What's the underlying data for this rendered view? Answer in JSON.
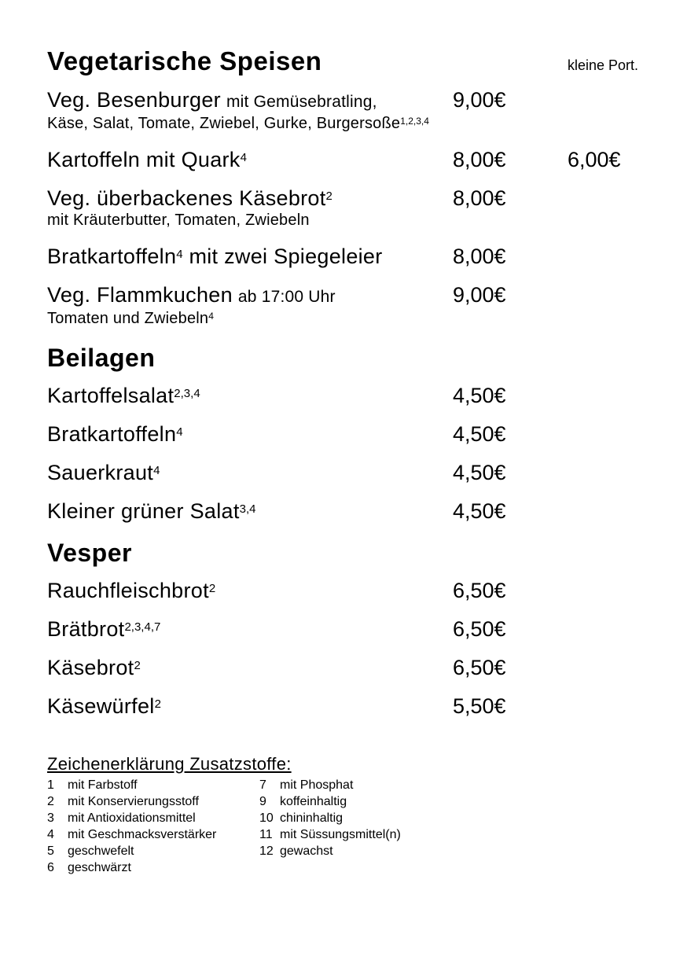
{
  "header": {
    "small_portion_label": "kleine Port."
  },
  "sections": [
    {
      "heading": "Vegetarische Speisen",
      "items": [
        {
          "name": "Veg. Besenburger",
          "note": "mit Gemüsebratling,",
          "price": "9,00€",
          "sub": "Käse, Salat, Tomate, Zwiebel, Gurke, Burgersoße",
          "sub_sup": "1,2,3,4"
        },
        {
          "name": "Kartoffeln mit Quark",
          "sup": "4",
          "price": "8,00€",
          "small_price": "6,00€"
        },
        {
          "name": "Veg. überbackenes Käsebrot",
          "sup": "2",
          "price": "8,00€",
          "sub": "mit Kräuterbutter, Tomaten, Zwiebeln"
        },
        {
          "name": "Bratkartoffeln",
          "sup": "4",
          "after": " mit zwei Spiegeleier",
          "price": "8,00€"
        },
        {
          "name": "Veg. Flammkuchen",
          "note": "ab 17:00 Uhr",
          "price": "9,00€",
          "sub": "Tomaten und Zwiebeln",
          "sub_sup": "4"
        }
      ]
    },
    {
      "heading": "Beilagen",
      "items": [
        {
          "name": "Kartoffelsalat",
          "sup": "2,3,4",
          "price": "4,50€"
        },
        {
          "name": "Bratkartoffeln",
          "sup": "4",
          "price": "4,50€"
        },
        {
          "name": "Sauerkraut",
          "sup": "4",
          "price": "4,50€"
        },
        {
          "name": "Kleiner grüner Salat",
          "sup": "3,4",
          "price": "4,50€"
        }
      ]
    },
    {
      "heading": "Vesper",
      "items": [
        {
          "name": "Rauchfleischbrot",
          "sup": "2",
          "price": "6,50€"
        },
        {
          "name": "Brätbrot",
          "sup": "2,3,4,7",
          "price": "6,50€"
        },
        {
          "name": "Käsebrot",
          "sup": "2",
          "price": "6,50€"
        },
        {
          "name": "Käsewürfel",
          "sup": "2",
          "price": "5,50€"
        }
      ]
    }
  ],
  "legend": {
    "heading": "Zeichenerklärung Zusatzstoffe:",
    "left": [
      {
        "num": "1",
        "text": "mit Farbstoff"
      },
      {
        "num": "2",
        "text": "mit Konservierungsstoff"
      },
      {
        "num": "3",
        "text": "mit Antioxidationsmittel"
      },
      {
        "num": "4",
        "text": "mit Geschmacksverstärker"
      },
      {
        "num": "5",
        "text": "geschwefelt"
      },
      {
        "num": "6",
        "text": "geschwärzt"
      }
    ],
    "right": [
      {
        "num": "7",
        "text": "mit Phosphat"
      },
      {
        "num": "9",
        "text": "koffeinhaltig"
      },
      {
        "num": "10",
        "text": "chininhaltig"
      },
      {
        "num": "11",
        "text": "mit Süssungsmittel(n)"
      },
      {
        "num": "12",
        "text": "gewachst"
      }
    ]
  },
  "colors": {
    "text": "#000000",
    "background": "#ffffff"
  }
}
